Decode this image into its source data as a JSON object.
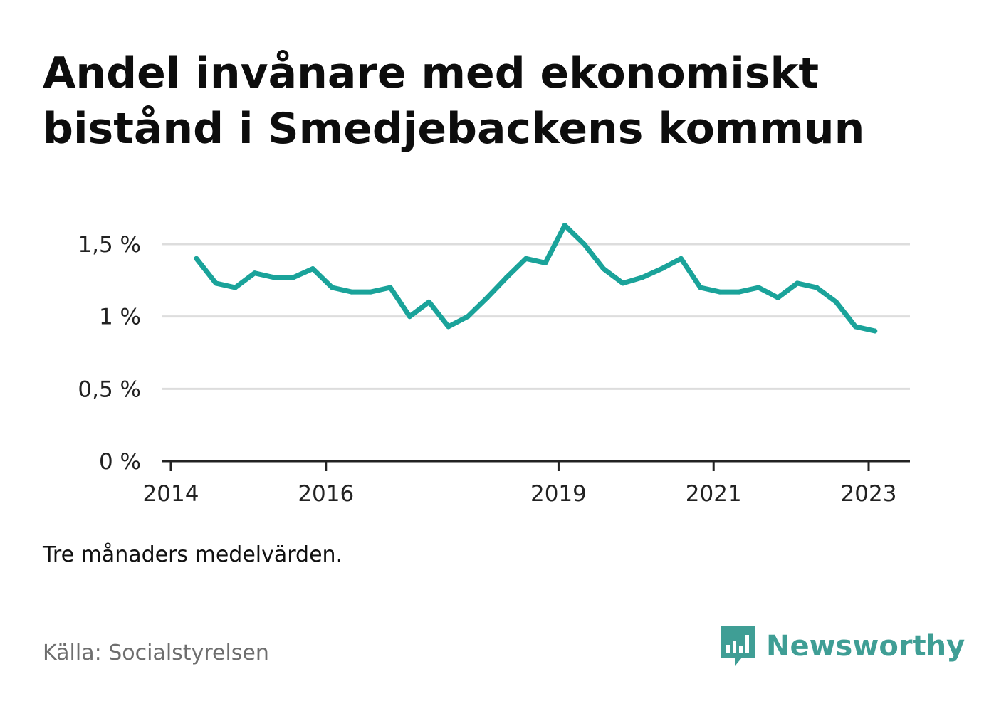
{
  "title": "Andel invånare med ekonomiskt bistånd i Smedjebackens kommun",
  "note": "Tre månaders medelvärden.",
  "source": "Källa: Socialstyrelsen",
  "brand": {
    "name": "Newsworthy",
    "logo_icon": "bar-chart-speech-bubble-icon",
    "color": "#3f9e95"
  },
  "chart_data": {
    "type": "line",
    "title": "Andel invånare med ekonomiskt bistånd i Smedjebackens kommun",
    "xlabel": "",
    "ylabel": "",
    "xlim": [
      2014.0,
      2023.25
    ],
    "ylim": [
      0,
      1.6
    ],
    "y_ticks": [
      {
        "value": 0,
        "label": "0 %"
      },
      {
        "value": 0.5,
        "label": "0,5 %"
      },
      {
        "value": 1,
        "label": "1 %"
      },
      {
        "value": 1.5,
        "label": "1,5 %"
      }
    ],
    "x_ticks": [
      {
        "value": 2014,
        "label": "2014"
      },
      {
        "value": 2016,
        "label": "2016"
      },
      {
        "value": 2019,
        "label": "2019"
      },
      {
        "value": 2021,
        "label": "2021"
      },
      {
        "value": 2023,
        "label": "2023"
      }
    ],
    "grid": true,
    "line_color": "#1aa39a",
    "x": [
      2014.33,
      2014.58,
      2014.83,
      2015.08,
      2015.33,
      2015.58,
      2015.83,
      2016.08,
      2016.33,
      2016.58,
      2016.83,
      2017.08,
      2017.33,
      2017.58,
      2017.83,
      2018.08,
      2018.33,
      2018.58,
      2018.83,
      2019.08,
      2019.33,
      2019.58,
      2019.83,
      2020.08,
      2020.33,
      2020.58,
      2020.83,
      2021.08,
      2021.33,
      2021.58,
      2021.83,
      2022.08,
      2022.33,
      2022.58,
      2022.83,
      2023.08
    ],
    "y": [
      1.4,
      1.23,
      1.2,
      1.3,
      1.27,
      1.27,
      1.33,
      1.2,
      1.17,
      1.17,
      1.2,
      1.0,
      1.1,
      0.93,
      1.0,
      1.13,
      1.27,
      1.4,
      1.37,
      1.63,
      1.5,
      1.33,
      1.23,
      1.27,
      1.33,
      1.4,
      1.2,
      1.17,
      1.17,
      1.2,
      1.13,
      1.23,
      1.2,
      1.1,
      0.93,
      0.9
    ]
  }
}
